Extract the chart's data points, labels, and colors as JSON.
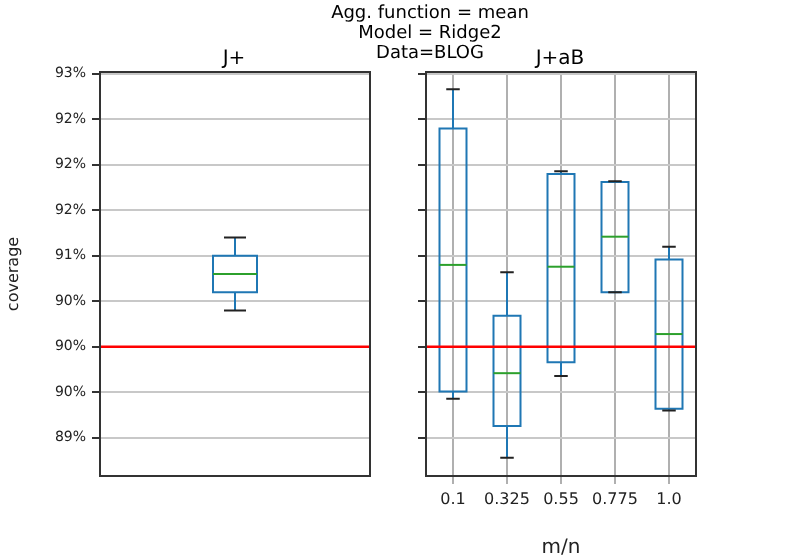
{
  "chart_data": [
    {
      "type": "box",
      "title": "J+",
      "ylabel": "coverage",
      "annotations": [
        "Agg. function = mean",
        "Model = Ridge2",
        "Data=BLOG"
      ],
      "categories": [
        null
      ],
      "tick_labels": "y",
      "grid": "y",
      "ylim": [
        88.58,
        93.02
      ],
      "yticks": [
        {
          "value": 89,
          "label": "89%"
        },
        {
          "value": 89.5,
          "label": "90%"
        },
        {
          "value": 90,
          "label": "90%"
        },
        {
          "value": 90.5,
          "label": "90%"
        },
        {
          "value": 91,
          "label": "91%"
        },
        {
          "value": 91.5,
          "label": "92%"
        },
        {
          "value": 92,
          "label": "92%"
        },
        {
          "value": 92.5,
          "label": "92%"
        },
        {
          "value": 93,
          "label": "93%"
        }
      ],
      "ref_lines": [
        {
          "axis": "y",
          "value": 90,
          "color": "#ff0000"
        }
      ],
      "series": [
        {
          "color": "#1f77b4",
          "boxes": [
            {
              "low": 90.4,
              "q1": 90.6,
              "median": 90.8,
              "q3": 91.0,
              "high": 91.2
            }
          ]
        }
      ]
    },
    {
      "type": "box",
      "title": "J+aB",
      "xlabel": "m/n",
      "categories": [
        "0.1",
        "0.325",
        "0.55",
        "0.775",
        "1.0"
      ],
      "tick_labels": "x",
      "grid": true,
      "ylim": [
        88.58,
        93.02
      ],
      "yticks": [
        {
          "value": 89,
          "label": null
        },
        {
          "value": 89.5,
          "label": null
        },
        {
          "value": 90,
          "label": null
        },
        {
          "value": 90.5,
          "label": null
        },
        {
          "value": 91,
          "label": null
        },
        {
          "value": 91.5,
          "label": null
        },
        {
          "value": 92,
          "label": null
        },
        {
          "value": 92.5,
          "label": null
        },
        {
          "value": 93,
          "label": null
        }
      ],
      "ref_lines": [
        {
          "axis": "y",
          "value": 90,
          "color": "#ff0000"
        }
      ],
      "series": [
        {
          "color": "#1f77b4",
          "boxes": [
            {
              "low": 89.43,
              "q1": 89.51,
              "median": 90.9,
              "q3": 92.4,
              "high": 92.83
            },
            {
              "low": 88.78,
              "q1": 89.13,
              "median": 89.71,
              "q3": 90.34,
              "high": 90.82
            },
            {
              "low": 89.68,
              "q1": 89.83,
              "median": 90.88,
              "q3": 91.9,
              "high": 91.93
            },
            {
              "low": 90.6,
              "q1": 90.6,
              "median": 91.21,
              "q3": 91.81,
              "high": 91.82
            },
            {
              "low": 89.3,
              "q1": 89.32,
              "median": 90.14,
              "q3": 90.96,
              "high": 91.1
            }
          ]
        }
      ]
    }
  ]
}
